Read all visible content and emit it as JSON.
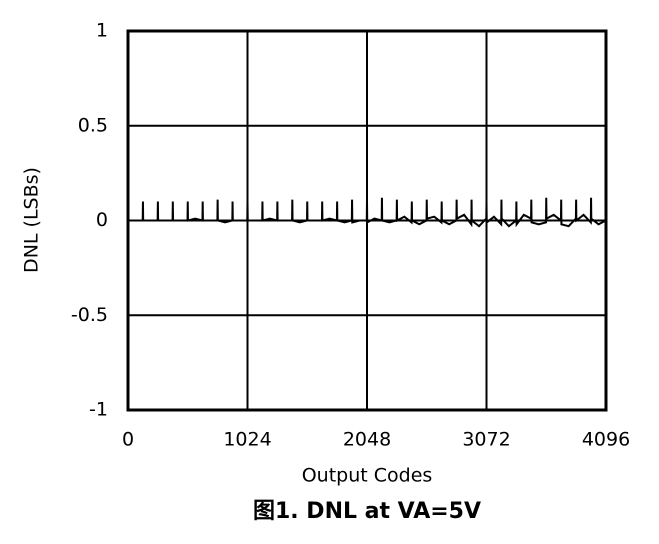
{
  "chart_data": {
    "type": "line",
    "title": "图1. DNL at VA=5V",
    "x_label": "Output Codes",
    "y_label": "DNL (LSBs)",
    "color": "#000000",
    "grid": true,
    "xlim": [
      0,
      4096
    ],
    "xticks": [
      0,
      1024,
      2048,
      3072,
      4096
    ],
    "ylim": [
      -1,
      1
    ],
    "yticks": [
      -1,
      -0.5,
      0,
      0.5,
      1
    ],
    "x": [
      0,
      126,
      128,
      130,
      192,
      254,
      256,
      258,
      320,
      382,
      384,
      386,
      448,
      510,
      512,
      514,
      576,
      638,
      640,
      642,
      704,
      766,
      768,
      770,
      832,
      894,
      896,
      898,
      960,
      1022,
      1024,
      1026,
      1088,
      1150,
      1152,
      1154,
      1216,
      1278,
      1280,
      1282,
      1344,
      1406,
      1408,
      1410,
      1472,
      1534,
      1536,
      1538,
      1600,
      1662,
      1664,
      1666,
      1728,
      1790,
      1792,
      1794,
      1856,
      1918,
      1920,
      1922,
      1984,
      2046,
      2048,
      2050,
      2112,
      2174,
      2176,
      2178,
      2240,
      2302,
      2304,
      2306,
      2368,
      2430,
      2432,
      2434,
      2496,
      2558,
      2560,
      2562,
      2624,
      2686,
      2688,
      2690,
      2752,
      2814,
      2816,
      2818,
      2880,
      2942,
      2944,
      2946,
      3008,
      3070,
      3072,
      3074,
      3136,
      3198,
      3200,
      3202,
      3264,
      3326,
      3328,
      3330,
      3392,
      3454,
      3456,
      3458,
      3520,
      3582,
      3584,
      3586,
      3648,
      3710,
      3712,
      3714,
      3776,
      3838,
      3840,
      3842,
      3904,
      3966,
      3968,
      3970,
      4032,
      4095
    ],
    "values": [
      0,
      0,
      0.1,
      0,
      0,
      0,
      0.1,
      0,
      0,
      0,
      0.1,
      0,
      0,
      0,
      0.1,
      0,
      0.01,
      0,
      0.1,
      0,
      0,
      0,
      0.11,
      0,
      -0.01,
      0,
      0.1,
      0,
      0,
      0,
      0.1,
      0,
      0,
      0,
      0.1,
      0,
      0.01,
      0,
      0.1,
      0,
      0,
      0,
      0.11,
      0,
      -0.01,
      0,
      0.1,
      0,
      0,
      0,
      0.1,
      0,
      0.01,
      0,
      0.1,
      0,
      -0.01,
      0,
      0.11,
      -0.01,
      0,
      0,
      0.1,
      -0.01,
      0.01,
      0,
      0.12,
      0,
      -0.01,
      0,
      0.11,
      0,
      0.02,
      -0.01,
      0.1,
      0,
      -0.02,
      0,
      0.11,
      0.01,
      0.02,
      -0.01,
      0.1,
      0,
      -0.02,
      0,
      0.11,
      0.01,
      0.03,
      -0.02,
      0.11,
      0,
      -0.03,
      0.01,
      0.1,
      -0.01,
      0.02,
      -0.02,
      0.11,
      0.01,
      -0.03,
      0,
      0.1,
      -0.02,
      0.03,
      0.01,
      0.11,
      -0.01,
      -0.02,
      -0.01,
      0.12,
      0.01,
      0.03,
      0,
      0.11,
      -0.02,
      -0.03,
      0.01,
      0.11,
      0,
      0.03,
      -0.01,
      0.12,
      0.01,
      -0.02,
      0
    ]
  }
}
